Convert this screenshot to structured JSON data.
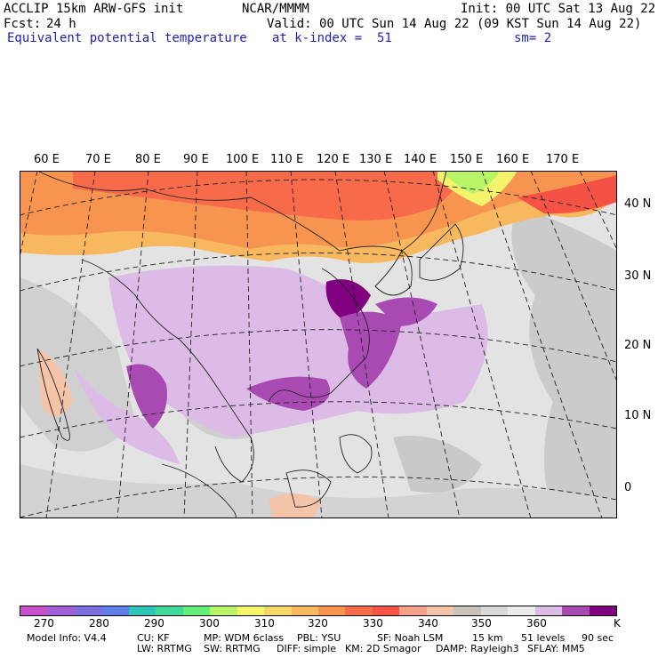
{
  "header": {
    "model": "ACCLIP 15km ARW-GFS init",
    "org": "NCAR/MMMM",
    "init": "Init: 00 UTC Sat 13 Aug 22",
    "fcst_label": "Fcst:",
    "fcst_value": "24 h",
    "valid": "Valid: 00 UTC Sun 14 Aug 22 (09 KST Sun 14 Aug 22)",
    "field": "Equivalent potential temperature",
    "level": "at k-index =  51",
    "smooth": "sm= 2"
  },
  "map": {
    "lon_labels": [
      "60 E",
      "70 E",
      "80 E",
      "90 E",
      "100 E",
      "110 E",
      "120 E",
      "130 E",
      "140 E",
      "150 E",
      "160 E",
      "170 E"
    ],
    "lat_labels": [
      "40 N",
      "30 N",
      "20 N",
      "10 N",
      "0"
    ]
  },
  "colorbar": {
    "colors": [
      "#c94fcc",
      "#a05fd6",
      "#7d6ee0",
      "#5f7fe6",
      "#2fc4b8",
      "#3fd99a",
      "#64ee7a",
      "#b8f566",
      "#f3f36c",
      "#f6d86a",
      "#f7b860",
      "#f79550",
      "#f76a4a",
      "#f35245",
      "#f6a08a",
      "#f4c4a8",
      "#c8c2bb",
      "#d9d9d9",
      "#ececec",
      "#dcbce6",
      "#a94ab3",
      "#800080"
    ],
    "tick_labels": [
      "270",
      "280",
      "290",
      "300",
      "310",
      "320",
      "330",
      "340",
      "350",
      "360"
    ],
    "unit": "K"
  },
  "model_info": {
    "line1": [
      "Model Info: V4.4",
      "CU: KF",
      "MP: WDM 6class",
      "PBL: YSU",
      "SF: Noah LSM",
      "15 km",
      "51 levels",
      "90 sec"
    ],
    "line2": [
      "LW: RRTMG",
      "SW: RRTMG",
      "DIFF: simple",
      "KM: 2D Smagor",
      "DAMP: Rayleigh3",
      "SFLAY: MM5"
    ]
  }
}
